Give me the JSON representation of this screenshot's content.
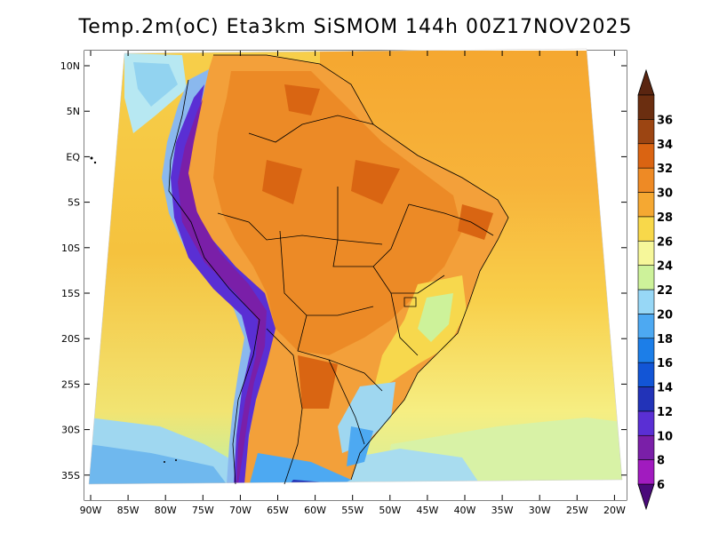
{
  "title": "Temp.2m(oC) Eta3km SiSMOM 144h 00Z17NOV2025",
  "map": {
    "variable": "Temp.2m",
    "units": "oC",
    "lat_labels": [
      "10N",
      "5N",
      "EQ",
      "5S",
      "10S",
      "15S",
      "20S",
      "25S",
      "30S",
      "35S"
    ],
    "lon_labels": [
      "90W",
      "85W",
      "80W",
      "75W",
      "70W",
      "65W",
      "60W",
      "55W",
      "50W",
      "45W",
      "40W",
      "35W",
      "30W",
      "25W",
      "20W"
    ]
  },
  "colorbar": {
    "levels": [
      "6",
      "8",
      "10",
      "12",
      "14",
      "16",
      "18",
      "20",
      "22",
      "24",
      "26",
      "28",
      "30",
      "32",
      "34",
      "36"
    ],
    "colors": [
      "#a11bbf",
      "#7a1fa8",
      "#5a2fd4",
      "#2233b8",
      "#1255d6",
      "#1c7ee8",
      "#4da9f2",
      "#97d7f6",
      "#cdf29a",
      "#f6f79a",
      "#f8d84a",
      "#f5a832",
      "#ee8a25",
      "#da6412",
      "#9c4512",
      "#6b2e10"
    ],
    "low_end_color": "#4a0a7a",
    "high_end_color": "#5a2510"
  }
}
